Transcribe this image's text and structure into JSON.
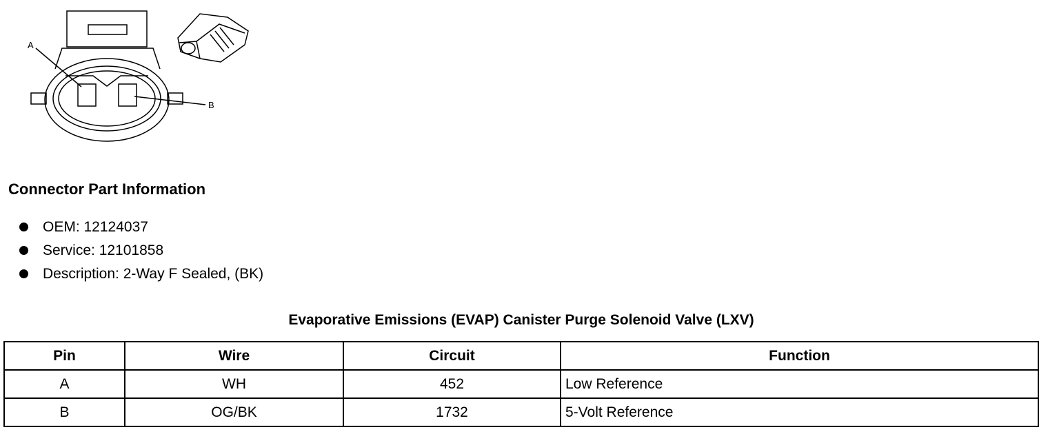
{
  "diagram": {
    "pin_labels": [
      "A",
      "B"
    ]
  },
  "section": {
    "title": "Connector Part Information",
    "bullets": [
      "OEM: 12124037",
      "Service: 12101858",
      "Description: 2-Way F Sealed, (BK)"
    ]
  },
  "table": {
    "title": "Evaporative Emissions (EVAP) Canister Purge Solenoid Valve (LXV)",
    "headers": [
      "Pin",
      "Wire",
      "Circuit",
      "Function"
    ],
    "rows": [
      [
        "A",
        "WH",
        452,
        "Low Reference"
      ],
      [
        "B",
        "OG/BK",
        1732,
        "5-Volt Reference"
      ]
    ]
  }
}
